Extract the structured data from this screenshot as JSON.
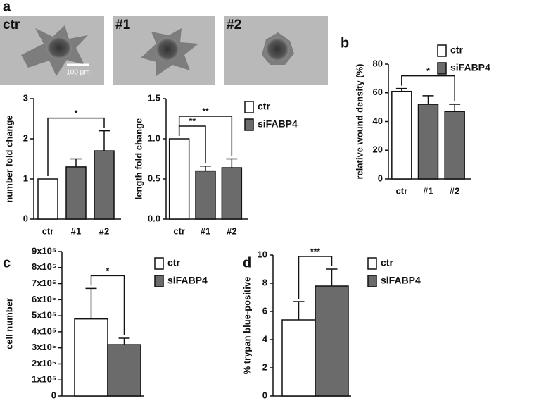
{
  "panel_labels": [
    "a",
    "b",
    "c",
    "d"
  ],
  "images": [
    {
      "label": "ctr"
    },
    {
      "label": "#1"
    },
    {
      "label": "#2"
    }
  ],
  "scale_bar": "100 µm",
  "chart_data": [
    {
      "type": "bar",
      "y_label": "number fold change",
      "categories": [
        "ctr",
        "#1",
        "#2"
      ],
      "series": [
        {
          "color": "#ffffff",
          "values": [
            1,
            null,
            null
          ],
          "errors": [
            null,
            null,
            null
          ]
        },
        {
          "color": "#6b6b6b",
          "values": [
            null,
            1.3,
            1.7
          ],
          "errors": [
            null,
            0.2,
            0.5
          ]
        }
      ],
      "ylim": [
        0,
        3
      ],
      "yticks": [
        0,
        1,
        2,
        3
      ],
      "annotations": [
        {
          "text": "*",
          "from": 0,
          "to": 2
        }
      ]
    },
    {
      "type": "bar",
      "y_label": "length fold change",
      "categories": [
        "ctr",
        "#1",
        "#2"
      ],
      "series": [
        {
          "name": "ctr",
          "color": "#ffffff",
          "values": [
            1.0,
            null,
            null
          ],
          "errors": [
            null,
            null,
            null
          ]
        },
        {
          "name": "siFABP4",
          "color": "#6b6b6b",
          "values": [
            null,
            0.6,
            0.64
          ],
          "errors": [
            null,
            0.06,
            0.11
          ]
        }
      ],
      "ylim": [
        0,
        1.5
      ],
      "yticks": [
        {
          "value": 0,
          "label": "0.0"
        },
        0.5,
        {
          "value": 1,
          "label": "1.0"
        },
        1.5
      ],
      "legend": "right",
      "annotations": [
        {
          "text": "**",
          "from": 0,
          "to": 1
        },
        {
          "text": "**",
          "from": 0,
          "to": 2
        }
      ]
    },
    {
      "type": "bar",
      "y_label": "relative wound density (%)",
      "categories": [
        "ctr",
        "#1",
        "#2"
      ],
      "series": [
        {
          "name": "ctr",
          "color": "#ffffff",
          "values": [
            61,
            null,
            null
          ],
          "errors": [
            2,
            null,
            null
          ]
        },
        {
          "name": "siFABP4",
          "color": "#6b6b6b",
          "values": [
            null,
            52,
            47
          ],
          "errors": [
            null,
            6,
            5
          ]
        }
      ],
      "ylim": [
        0,
        80
      ],
      "yticks": [
        0,
        20,
        40,
        60,
        80
      ],
      "legend": "right",
      "annotations": [
        {
          "text": "*",
          "from": 0,
          "to": 2
        }
      ]
    },
    {
      "type": "bar",
      "y_label": "cell number",
      "categories": [
        null,
        null
      ],
      "series": [
        {
          "name": "ctr",
          "color": "#ffffff",
          "values": [
            480000,
            null
          ],
          "errors": [
            190000,
            null
          ]
        },
        {
          "name": "siFABP4",
          "color": "#6b6b6b",
          "values": [
            null,
            320000
          ],
          "errors": [
            null,
            40000
          ]
        }
      ],
      "ylim": [
        0,
        900000
      ],
      "yticks": [
        0,
        {
          "value": 100000,
          "label": "1x10⁵"
        },
        {
          "value": 200000,
          "label": "2x10⁵"
        },
        {
          "value": 300000,
          "label": "3x10⁵"
        },
        {
          "value": 400000,
          "label": "4x10⁵"
        },
        {
          "value": 500000,
          "label": "5x10⁵"
        },
        {
          "value": 600000,
          "label": "6x10⁵"
        },
        {
          "value": 700000,
          "label": "7x10⁵"
        },
        {
          "value": 800000,
          "label": "8x10⁵"
        },
        {
          "value": 900000,
          "label": "9x10⁵"
        }
      ],
      "legend": "right",
      "annotations": [
        {
          "text": "*",
          "from": 0,
          "to": 1
        }
      ]
    },
    {
      "type": "bar",
      "y_label": "% trypan blue-positive",
      "categories": [
        null,
        null
      ],
      "series": [
        {
          "name": "ctr",
          "color": "#ffffff",
          "values": [
            5.4,
            null
          ],
          "errors": [
            1.3,
            null
          ]
        },
        {
          "name": "siFABP4",
          "color": "#6b6b6b",
          "values": [
            null,
            7.8
          ],
          "errors": [
            null,
            1.2
          ]
        }
      ],
      "ylim": [
        0,
        10
      ],
      "yticks": [
        0,
        2,
        4,
        6,
        8,
        10
      ],
      "legend": "right",
      "annotations": [
        {
          "text": "***",
          "from": 0,
          "to": 1
        }
      ]
    }
  ]
}
